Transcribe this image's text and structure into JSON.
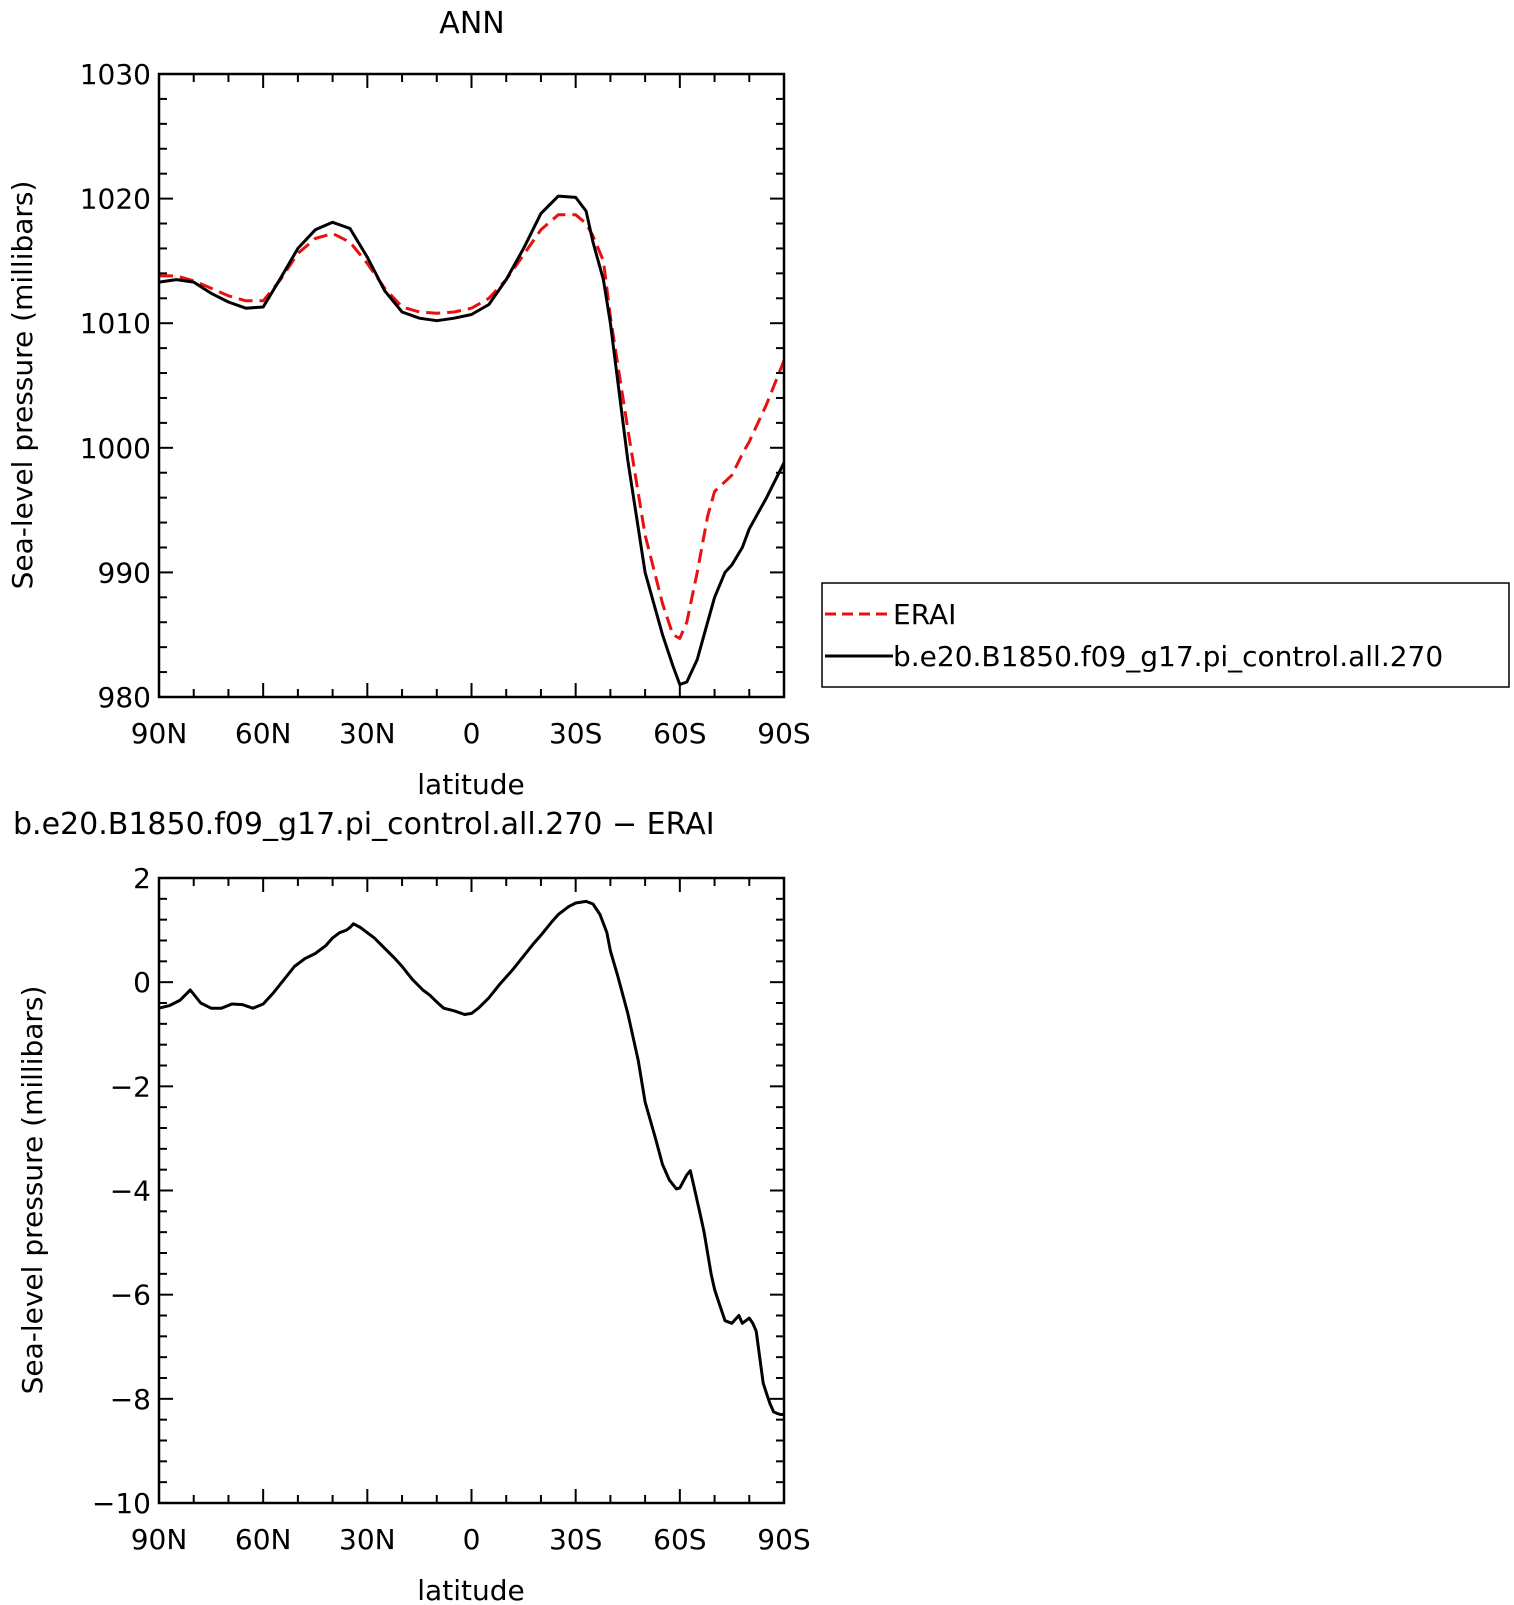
{
  "chart_data": [
    {
      "type": "line",
      "title": "ANN",
      "xlabel": "latitude",
      "ylabel": "Sea-level pressure (millibars)",
      "x_units": "degrees latitude (positive = north, negative = south)",
      "xlim": [
        90,
        -90
      ],
      "ylim": [
        980,
        1030
      ],
      "x_ticks": [
        {
          "value": 90,
          "label": "90N"
        },
        {
          "value": 60,
          "label": "60N"
        },
        {
          "value": 30,
          "label": "30N"
        },
        {
          "value": 0,
          "label": "0"
        },
        {
          "value": -30,
          "label": "30S"
        },
        {
          "value": -60,
          "label": "60S"
        },
        {
          "value": -90,
          "label": "90S"
        }
      ],
      "y_ticks": [
        980,
        990,
        1000,
        1010,
        1020,
        1030
      ],
      "legend_placement": "right",
      "series": [
        {
          "name": "ERAI",
          "color": "#e8110f",
          "dash": "dashed",
          "x": [
            90,
            85,
            80,
            75,
            70,
            65,
            60,
            55,
            50,
            45,
            40,
            35,
            30,
            25,
            20,
            15,
            10,
            5,
            0,
            -5,
            -10,
            -15,
            -20,
            -25,
            -30,
            -33,
            -35,
            -38,
            -40,
            -45,
            -50,
            -55,
            -58,
            -60,
            -62,
            -65,
            -68,
            -70,
            -75,
            -78,
            -80,
            -85,
            -90
          ],
          "y": [
            1013.8,
            1013.8,
            1013.4,
            1012.8,
            1012.2,
            1011.8,
            1011.8,
            1013.5,
            1015.6,
            1016.8,
            1017.2,
            1016.5,
            1014.8,
            1012.8,
            1011.3,
            1010.9,
            1010.8,
            1010.9,
            1011.2,
            1012.0,
            1013.5,
            1015.5,
            1017.5,
            1018.7,
            1018.7,
            1018.0,
            1017.0,
            1015.0,
            1010.5,
            1001.5,
            993.0,
            987.5,
            985.0,
            984.7,
            986.0,
            990.0,
            994.5,
            996.5,
            997.8,
            999.5,
            1000.5,
            1003.5,
            1007.0
          ]
        },
        {
          "name": "b.e20.B1850.f09_g17.pi_control.all.270",
          "color": "#000000",
          "dash": "solid",
          "x": [
            90,
            85,
            80,
            75,
            70,
            65,
            60,
            55,
            50,
            45,
            40,
            35,
            30,
            25,
            20,
            15,
            10,
            5,
            0,
            -5,
            -10,
            -15,
            -20,
            -25,
            -30,
            -33,
            -35,
            -38,
            -40,
            -45,
            -50,
            -55,
            -58,
            -60,
            -62,
            -65,
            -68,
            -70,
            -73,
            -75,
            -78,
            -80,
            -85,
            -90
          ],
          "y": [
            1013.3,
            1013.5,
            1013.3,
            1012.4,
            1011.7,
            1011.2,
            1011.3,
            1013.6,
            1016.0,
            1017.5,
            1018.1,
            1017.6,
            1015.3,
            1012.6,
            1010.9,
            1010.4,
            1010.2,
            1010.4,
            1010.7,
            1011.5,
            1013.5,
            1016.0,
            1018.8,
            1020.2,
            1020.1,
            1019.0,
            1016.5,
            1013.5,
            1010.0,
            999.0,
            990.0,
            985.0,
            982.5,
            981.0,
            981.2,
            983.0,
            986.0,
            988.0,
            990.0,
            990.6,
            992.0,
            993.5,
            996.0,
            998.8
          ]
        }
      ]
    },
    {
      "type": "line",
      "title": "b.e20.B1850.f09_g17.pi_control.all.270 − ERAI",
      "xlabel": "latitude",
      "ylabel": "Sea-level pressure (millibars)",
      "x_units": "degrees latitude (positive = north, negative = south)",
      "xlim": [
        90,
        -90
      ],
      "ylim": [
        -10,
        2
      ],
      "x_ticks": [
        {
          "value": 90,
          "label": "90N"
        },
        {
          "value": 60,
          "label": "60N"
        },
        {
          "value": 30,
          "label": "30N"
        },
        {
          "value": 0,
          "label": "0"
        },
        {
          "value": -30,
          "label": "30S"
        },
        {
          "value": -60,
          "label": "60S"
        },
        {
          "value": -90,
          "label": "90S"
        }
      ],
      "y_ticks": [
        -10,
        -8,
        -6,
        -4,
        -2,
        0,
        2
      ],
      "series": [
        {
          "color": "#000000",
          "dash": "solid",
          "x": [
            90,
            87,
            84,
            81,
            78,
            75,
            72,
            69,
            66,
            63,
            60,
            57,
            54,
            51,
            48,
            45,
            42,
            40,
            38,
            36,
            35,
            34,
            32,
            30,
            28,
            25,
            22,
            20,
            17,
            14,
            12,
            10,
            8,
            5,
            2,
            0,
            -2,
            -5,
            -8,
            -10,
            -12,
            -15,
            -18,
            -20,
            -23,
            -25,
            -28,
            -30,
            -33,
            -35,
            -37,
            -39,
            -40,
            -42,
            -45,
            -48,
            -50,
            -53,
            -55,
            -57,
            -59,
            -60,
            -62,
            -63,
            -64,
            -65,
            -66,
            -67,
            -68,
            -69,
            -70,
            -71,
            -72,
            -73,
            -75,
            -77,
            -78,
            -79,
            -80,
            -81,
            -82,
            -83,
            -84,
            -85,
            -86,
            -87,
            -88,
            -89,
            -90
          ],
          "y": [
            -0.5,
            -0.45,
            -0.35,
            -0.15,
            -0.4,
            -0.5,
            -0.5,
            -0.42,
            -0.43,
            -0.5,
            -0.42,
            -0.2,
            0.05,
            0.3,
            0.45,
            0.55,
            0.7,
            0.85,
            0.95,
            1.0,
            1.05,
            1.12,
            1.05,
            0.95,
            0.85,
            0.65,
            0.45,
            0.3,
            0.05,
            -0.15,
            -0.25,
            -0.38,
            -0.5,
            -0.55,
            -0.62,
            -0.6,
            -0.5,
            -0.3,
            -0.05,
            0.1,
            0.25,
            0.5,
            0.75,
            0.9,
            1.15,
            1.3,
            1.45,
            1.52,
            1.55,
            1.5,
            1.3,
            0.95,
            0.6,
            0.15,
            -0.6,
            -1.5,
            -2.3,
            -3.0,
            -3.5,
            -3.8,
            -3.97,
            -3.95,
            -3.7,
            -3.62,
            -3.9,
            -4.2,
            -4.5,
            -4.8,
            -5.2,
            -5.6,
            -5.9,
            -6.1,
            -6.3,
            -6.5,
            -6.55,
            -6.4,
            -6.55,
            -6.5,
            -6.45,
            -6.55,
            -6.7,
            -7.2,
            -7.7,
            -7.9,
            -8.1,
            -8.25,
            -8.28,
            -8.3,
            -8.3
          ]
        }
      ]
    }
  ]
}
